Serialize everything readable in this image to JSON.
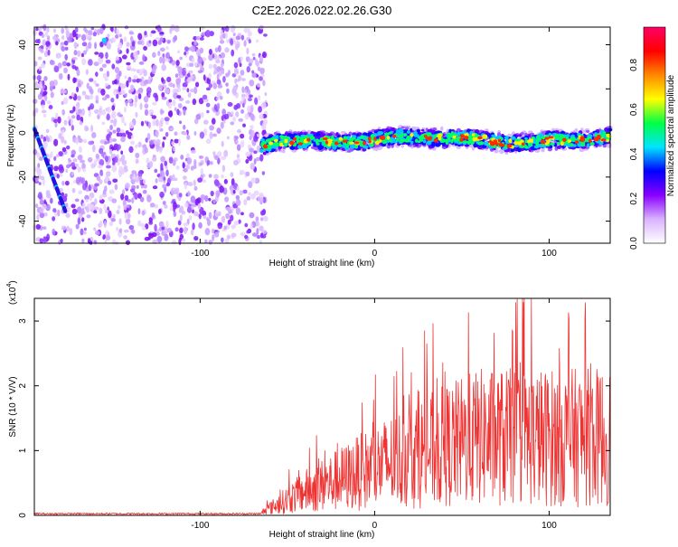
{
  "page_title": "C2E2.2026.022.02.26.G30",
  "chart_data": [
    {
      "type": "heatmap",
      "name": "spectrogram",
      "xlabel": "Height of straight line (km)",
      "ylabel": "Frequency (Hz)",
      "xlim": [
        -195,
        135
      ],
      "ylim": [
        -50,
        48
      ],
      "xticks": [
        -100,
        0,
        100
      ],
      "xtick_labels": [
        "-100",
        "0",
        "100"
      ],
      "yticks": [
        40,
        20,
        0,
        -20,
        -40
      ],
      "ytick_labels": [
        "40",
        "20",
        "0",
        "-20",
        "-40"
      ],
      "noise_region_x": [
        -195,
        -62
      ],
      "signal_band_center_hz": -3,
      "signal_band_halfwidth_hz": 4,
      "colorbar": {
        "label": "Normalized spectral amplitude",
        "range": [
          0,
          0.97
        ],
        "ticks": [
          0,
          0.2,
          0.4,
          0.6,
          0.8
        ],
        "tick_labels": [
          "0.0",
          "0.2",
          "0.4",
          "0.6",
          "0.8"
        ],
        "colors": [
          "#ffffff",
          "#d9b3ff",
          "#8800ff",
          "#0000ff",
          "#00e5ff",
          "#00ff44",
          "#ffff00",
          "#ff8800",
          "#ff0000",
          "#ff0066"
        ]
      }
    },
    {
      "type": "line",
      "name": "snr",
      "xlabel": "Height of straight line (km)",
      "ylabel": "SNR (10 * V/V)",
      "y_scale_label": "(x10",
      "y_scale_exp": "4",
      "xlim": [
        -195,
        135
      ],
      "ylim": [
        0,
        3.35
      ],
      "xticks": [
        -100,
        0,
        100
      ],
      "xtick_labels": [
        "-100",
        "0",
        "100"
      ],
      "yticks": [
        0,
        1,
        2,
        3
      ],
      "ytick_labels": [
        "0",
        "1",
        "2",
        "3"
      ],
      "line_color": "#ee3333",
      "series_shape": {
        "baseline_until_x": -65,
        "baseline_level": 0.03,
        "ramp_points": [
          [
            -65,
            0.05
          ],
          [
            -40,
            0.4
          ],
          [
            -10,
            0.7
          ],
          [
            20,
            1.0
          ],
          [
            60,
            1.3
          ],
          [
            135,
            1.3
          ]
        ],
        "peak_max": 3.35
      }
    }
  ]
}
